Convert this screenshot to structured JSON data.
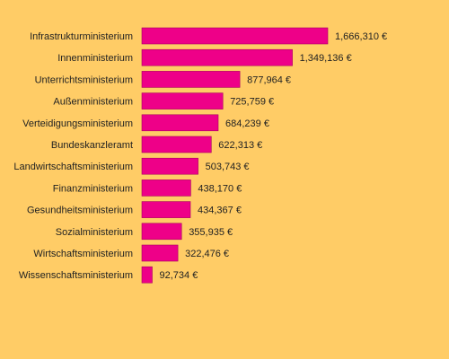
{
  "colors": {
    "background": "#ffcc66",
    "bar_fill": "#ee0088",
    "bar_stroke": "#a8005f",
    "text": "#222222"
  },
  "chart_data": {
    "type": "bar",
    "orientation": "horizontal",
    "categories": [
      "Infrastrukturministerium",
      "Innenministerium",
      "Unterrichtsministerium",
      "Außenministerium",
      "Verteidigungsministerium",
      "Bundeskanzleramt",
      "Landwirtschaftsministerium",
      "Finanzministerium",
      "Gesundheitsministerium",
      "Sozialministerium",
      "Wirtschaftsministerium",
      "Wissenschaftsministerium"
    ],
    "values": [
      1666310,
      1349136,
      877964,
      725759,
      684239,
      622313,
      503743,
      438170,
      434367,
      355935,
      322476,
      92734
    ],
    "value_labels": [
      "1,666,310 €",
      "1,349,136 €",
      "877,964 €",
      "725,759 €",
      "684,239 €",
      "622,313 €",
      "503,743 €",
      "438,170 €",
      "434,367 €",
      "355,935 €",
      "322,476 €",
      "92,734 €"
    ],
    "title": "",
    "xlabel": "",
    "ylabel": "",
    "grid": false,
    "legend": "none"
  }
}
